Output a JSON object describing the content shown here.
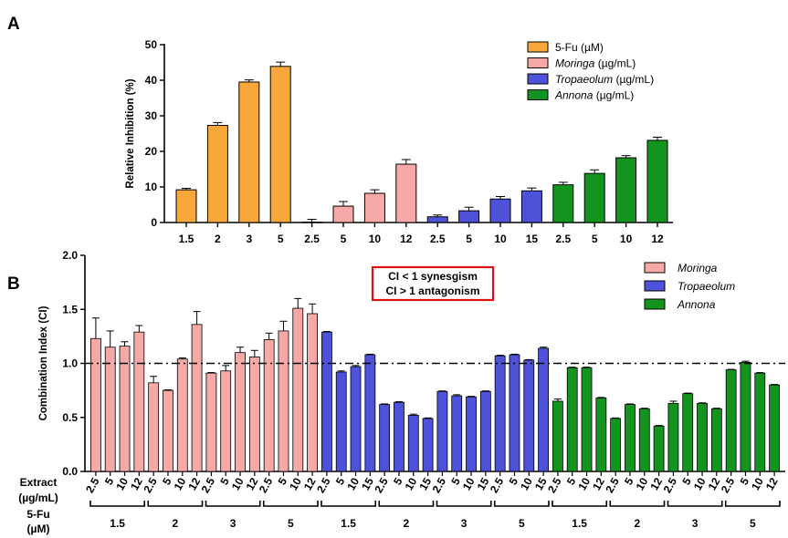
{
  "chart_data": [
    {
      "panel": "A",
      "type": "bar",
      "ylabel": "Relative Inhibition (%)",
      "ylim": [
        0,
        50
      ],
      "yticks": [
        0,
        10,
        20,
        30,
        40,
        50
      ],
      "legend": {
        "placement": "top-right",
        "entries": [
          {
            "name": "5-Fu",
            "suffix": " (µM)",
            "italic": false,
            "color": "#F8A73A"
          },
          {
            "name": "Moringa",
            "suffix": " (µg/mL)",
            "italic": true,
            "color": "#F7A9A7"
          },
          {
            "name": "Tropaeolum",
            "suffix": " (µg/mL)",
            "italic": true,
            "color": "#4E52D9"
          },
          {
            "name": "Annona",
            "suffix": " (µg/mL)",
            "italic": true,
            "color": "#13941F"
          }
        ]
      },
      "series": [
        {
          "name": "5-Fu",
          "color": "#F8A73A",
          "categories": [
            "1.5",
            "2",
            "3",
            "5"
          ],
          "values": [
            9.2,
            27.3,
            39.5,
            43.9
          ],
          "errors": [
            0.4,
            0.8,
            0.6,
            1.2
          ]
        },
        {
          "name": "Moringa",
          "color": "#F7A9A7",
          "categories": [
            "2.5",
            "5",
            "10",
            "12"
          ],
          "values": [
            0.1,
            4.6,
            8.2,
            16.4
          ],
          "errors": [
            0.8,
            1.3,
            1.0,
            1.3
          ]
        },
        {
          "name": "Tropaeolum",
          "color": "#4E52D9",
          "categories": [
            "2.5",
            "5",
            "10",
            "15"
          ],
          "values": [
            1.6,
            3.3,
            6.6,
            8.9
          ],
          "errors": [
            0.5,
            1.0,
            0.7,
            0.8
          ]
        },
        {
          "name": "Annona",
          "color": "#13941F",
          "categories": [
            "2.5",
            "5",
            "10",
            "12"
          ],
          "values": [
            10.6,
            13.8,
            18.2,
            23.1
          ],
          "errors": [
            0.7,
            1.0,
            0.6,
            0.9
          ]
        }
      ]
    },
    {
      "panel": "B",
      "type": "bar",
      "ylabel": "Combination Index (CI)",
      "ylim": [
        0,
        2.0
      ],
      "yticks": [
        "0.0",
        "0.5",
        "1.0",
        "1.5",
        "2.0"
      ],
      "reference_line": 1.0,
      "annotation": [
        "CI < 1 synesgism",
        "CI > 1 antagonism"
      ],
      "legend": {
        "placement": "top-right",
        "entries": [
          {
            "name": "Moringa",
            "color": "#F7A9A7"
          },
          {
            "name": "Tropaeolum",
            "color": "#4E52D9"
          },
          {
            "name": "Annona",
            "color": "#13941F"
          }
        ]
      },
      "extract_label": [
        "Extract",
        "(µg/mL)"
      ],
      "fu_label": [
        "5-Fu",
        "(µM)"
      ],
      "fu_levels": [
        "1.5",
        "2",
        "3",
        "5"
      ],
      "series": [
        {
          "name": "Moringa",
          "color": "#F7A9A7",
          "extract_levels": [
            "2.5",
            "5",
            "10",
            "12"
          ],
          "values": [
            [
              1.23,
              1.15,
              1.16,
              1.29
            ],
            [
              0.82,
              0.75,
              1.04,
              1.36
            ],
            [
              0.91,
              0.93,
              1.1,
              1.06
            ],
            [
              1.22,
              1.3,
              1.51,
              1.46
            ]
          ],
          "errors": [
            [
              0.19,
              0.15,
              0.04,
              0.06
            ],
            [
              0.06,
              0.005,
              0.01,
              0.12
            ],
            [
              0.005,
              0.05,
              0.05,
              0.06
            ],
            [
              0.06,
              0.09,
              0.09,
              0.09
            ]
          ]
        },
        {
          "name": "Tropaeolum",
          "color": "#4E52D9",
          "extract_levels": [
            "2.5",
            "5",
            "10",
            "15"
          ],
          "values": [
            [
              1.29,
              0.92,
              0.97,
              1.08
            ],
            [
              0.62,
              0.64,
              0.52,
              0.49
            ],
            [
              0.74,
              0.7,
              0.69,
              0.74
            ],
            [
              1.07,
              1.08,
              1.03,
              1.14
            ]
          ],
          "errors": [
            [
              0.005,
              0.01,
              0.01,
              0.005
            ],
            [
              0.005,
              0.005,
              0.01,
              0.005
            ],
            [
              0.005,
              0.01,
              0.005,
              0.005
            ],
            [
              0.005,
              0.005,
              0.005,
              0.01
            ]
          ]
        },
        {
          "name": "Annona",
          "color": "#13941F",
          "extract_levels": [
            "2.5",
            "5",
            "10",
            "12"
          ],
          "values": [
            [
              0.65,
              0.96,
              0.96,
              0.68
            ],
            [
              0.49,
              0.62,
              0.58,
              0.42
            ],
            [
              0.63,
              0.72,
              0.63,
              0.58
            ],
            [
              0.94,
              1.01,
              0.91,
              0.8
            ]
          ],
          "errors": [
            [
              0.02,
              0.005,
              0.005,
              0.005
            ],
            [
              0.005,
              0.005,
              0.005,
              0.005
            ],
            [
              0.02,
              0.005,
              0.005,
              0.005
            ],
            [
              0.005,
              0.01,
              0.005,
              0.005
            ]
          ]
        }
      ]
    }
  ]
}
